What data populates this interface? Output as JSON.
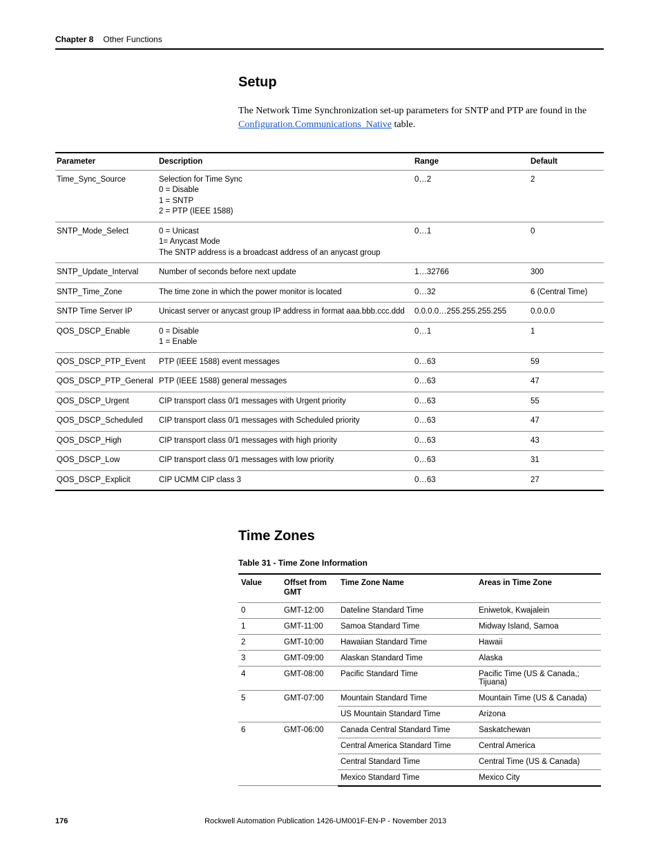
{
  "header": {
    "chapter_label": "Chapter 8",
    "chapter_title": "Other Functions"
  },
  "setup": {
    "heading": "Setup",
    "intro_pre": "The Network Time Synchronization set-up parameters for SNTP and PTP are found in the ",
    "intro_link": "Configuration.Communications_Native",
    "intro_post": " table."
  },
  "param_table": {
    "columns": [
      "Parameter",
      "Description",
      "Range",
      "Default"
    ],
    "rows": [
      {
        "param": "Time_Sync_Source",
        "desc": "Selection for Time Sync\n0 = Disable\n1 = SNTP\n2 = PTP (IEEE 1588)",
        "range": "0…2",
        "default": "2"
      },
      {
        "param": "SNTP_Mode_Select",
        "desc": "0 = Unicast\n1= Anycast Mode\nThe SNTP address is a broadcast address of an anycast group",
        "range": "0…1",
        "default": "0"
      },
      {
        "param": "SNTP_Update_Interval",
        "desc": "Number of seconds before next update",
        "range": "1…32766",
        "default": "300"
      },
      {
        "param": "SNTP_Time_Zone",
        "desc": "The time zone in which the power monitor is located",
        "range": "0…32",
        "default": "6 (Central Time)"
      },
      {
        "param": "SNTP Time Server IP",
        "desc": "Unicast server or anycast group IP address in format aaa.bbb.ccc.ddd",
        "range": "0.0.0.0…255.255.255.255",
        "default": "0.0.0.0"
      },
      {
        "param": "QOS_DSCP_Enable",
        "desc": "0 = Disable\n1 = Enable",
        "range": "0…1",
        "default": "1"
      },
      {
        "param": "QOS_DSCP_PTP_Event",
        "desc": "PTP (IEEE 1588) event messages",
        "range": "0…63",
        "default": "59"
      },
      {
        "param": "QOS_DSCP_PTP_General",
        "desc": "PTP (IEEE 1588) general messages",
        "range": "0…63",
        "default": "47"
      },
      {
        "param": "QOS_DSCP_Urgent",
        "desc": "CIP transport class 0/1 messages with Urgent priority",
        "range": "0…63",
        "default": "55"
      },
      {
        "param": "QOS_DSCP_Scheduled",
        "desc": "CIP transport class 0/1 messages with Scheduled priority",
        "range": "0…63",
        "default": "47"
      },
      {
        "param": "QOS_DSCP_High",
        "desc": "CIP transport class 0/1 messages with high priority",
        "range": "0…63",
        "default": "43"
      },
      {
        "param": "QOS_DSCP_Low",
        "desc": "CIP transport class 0/1 messages with low priority",
        "range": "0…63",
        "default": "31"
      },
      {
        "param": "QOS_DSCP_Explicit",
        "desc": "CIP UCMM CIP class 3",
        "range": "0…63",
        "default": "27"
      }
    ]
  },
  "timezones": {
    "heading": "Time Zones",
    "caption": "Table 31 - Time Zone Information",
    "columns": [
      "Value",
      "Offset from GMT",
      "Time Zone Name",
      "Areas in Time Zone"
    ],
    "rows": [
      {
        "value": "0",
        "offset": "GMT-12:00",
        "name": "Dateline Standard Time",
        "area": "Eniwetok, Kwajalein"
      },
      {
        "value": "1",
        "offset": "GMT-11:00",
        "name": "Samoa Standard Time",
        "area": "Midway Island, Samoa"
      },
      {
        "value": "2",
        "offset": "GMT-10:00",
        "name": "Hawaiian Standard Time",
        "area": "Hawaii"
      },
      {
        "value": "3",
        "offset": "GMT-09:00",
        "name": "Alaskan Standard Time",
        "area": "Alaska"
      },
      {
        "value": "4",
        "offset": "GMT-08:00",
        "name": "Pacific Standard Time",
        "area": "Pacific Time (US & Canada,; Tijuana)"
      },
      {
        "value": "5",
        "offset": "GMT-07:00",
        "name": "Mountain Standard Time",
        "area": "Mountain Time (US & Canada)"
      },
      {
        "value": "",
        "offset": "",
        "name": "US Mountain Standard Time",
        "area": "Arizona"
      },
      {
        "value": "6",
        "offset": "GMT-06:00",
        "name": "Canada Central Standard Time",
        "area": "Saskatchewan"
      },
      {
        "value": "",
        "offset": "",
        "name": "Central America Standard Time",
        "area": "Central America"
      },
      {
        "value": "",
        "offset": "",
        "name": "Central Standard Time",
        "area": "Central Time (US & Canada)"
      },
      {
        "value": "",
        "offset": "",
        "name": "Mexico Standard Time",
        "area": "Mexico City"
      }
    ]
  },
  "footer": {
    "page": "176",
    "publication": "Rockwell Automation Publication 1426-UM001F-EN-P - November 2013"
  }
}
